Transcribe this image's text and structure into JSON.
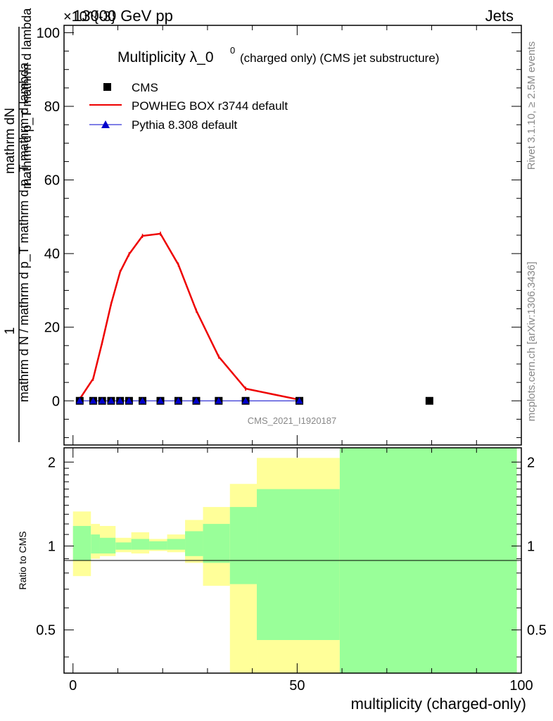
{
  "header": {
    "left": "13000 GeV pp",
    "right": "Jets",
    "exponent": "×10^{-3}"
  },
  "title": {
    "main": "Multiplicity λ_0",
    "superscript": "0",
    "sub": "(charged only) (CMS jet substructure)"
  },
  "side_text": {
    "rivet": "Rivet 3.1.10, ≥ 2.5M events",
    "mcplots": "mcplots.cern.ch [arXiv:1306.3436]"
  },
  "watermark": "CMS_2021_I1920187",
  "ylabel_main": {
    "numerator": "mathrm dN",
    "numerator2": "mathrm d p_T mathrm d lambda",
    "one": "1",
    "denominator": "mathrm d N / mathrm d p_T mathrm d p_T mathrm d lambda"
  },
  "ylabel_ratio": "Ratio to CMS",
  "xlabel": "multiplicity (charged-only)",
  "legend": [
    {
      "label": "CMS",
      "color": "#000000",
      "marker": "square"
    },
    {
      "label": "POWHEG BOX r3744 default",
      "color": "#ee0000",
      "marker": "line"
    },
    {
      "label": "Pythia 8.308 default",
      "color": "#0000cc",
      "marker": "triangle"
    }
  ],
  "chart_data": {
    "type": "line",
    "xlim": [
      -2,
      100
    ],
    "ylim_main": [
      -12,
      102
    ],
    "ylim_ratio": [
      0.35,
      2.25
    ],
    "xticks": [
      0,
      50,
      100
    ],
    "yticks_main": [
      0,
      20,
      40,
      60,
      80,
      100
    ],
    "yticks_ratio": [
      0.5,
      1,
      2
    ],
    "series": [
      {
        "name": "CMS",
        "x": [
          1.5,
          4.5,
          6.5,
          8.5,
          10.5,
          12.5,
          15.5,
          19.5,
          23.5,
          27.5,
          32.5,
          38.5,
          50.5,
          79.5
        ],
        "y": [
          0,
          0,
          0,
          0,
          0,
          0,
          0,
          0,
          0,
          0,
          0,
          0,
          0,
          0
        ]
      },
      {
        "name": "POWHEG BOX r3744 default",
        "x": [
          1.5,
          4.5,
          6.5,
          8.5,
          10.5,
          12.5,
          15.5,
          19.5,
          23.5,
          27.5,
          32.5,
          38.5,
          50.5
        ],
        "y": [
          0.5,
          6.0,
          15.8,
          26.3,
          35.0,
          39.8,
          44.8,
          45.4,
          37.0,
          24.5,
          12.0,
          3.3,
          0.3
        ]
      },
      {
        "name": "Pythia 8.308 default",
        "x": [
          1.5,
          4.5,
          6.5,
          8.5,
          10.5,
          12.5,
          15.5,
          19.5,
          23.5,
          27.5,
          32.5,
          38.5,
          50.5
        ],
        "y": [
          0,
          0,
          0,
          0,
          0,
          0,
          0,
          0,
          0,
          0,
          0,
          0,
          0
        ]
      }
    ],
    "ratio_bands": [
      {
        "x": [
          0,
          4
        ],
        "yellow": [
          0.78,
          1.33
        ],
        "green": [
          0.89,
          1.18
        ]
      },
      {
        "x": [
          4,
          6
        ],
        "yellow": [
          0.9,
          1.2
        ],
        "green": [
          0.94,
          1.1
        ]
      },
      {
        "x": [
          6,
          9.5
        ],
        "yellow": [
          0.92,
          1.18
        ],
        "green": [
          0.94,
          1.07
        ]
      },
      {
        "x": [
          9.5,
          13
        ],
        "yellow": [
          0.95,
          1.07
        ],
        "green": [
          0.97,
          1.03
        ]
      },
      {
        "x": [
          13,
          17
        ],
        "yellow": [
          0.94,
          1.12
        ],
        "green": [
          0.97,
          1.06
        ]
      },
      {
        "x": [
          17,
          21
        ],
        "yellow": [
          0.96,
          1.06
        ],
        "green": [
          0.97,
          1.04
        ]
      },
      {
        "x": [
          21,
          25
        ],
        "yellow": [
          0.95,
          1.1
        ],
        "green": [
          0.97,
          1.06
        ]
      },
      {
        "x": [
          25,
          29
        ],
        "yellow": [
          0.87,
          1.24
        ],
        "green": [
          0.92,
          1.13
        ]
      },
      {
        "x": [
          29,
          35
        ],
        "yellow": [
          0.72,
          1.38
        ],
        "green": [
          0.87,
          1.2
        ]
      },
      {
        "x": [
          35,
          41
        ],
        "yellow": [
          0.35,
          1.67
        ],
        "green": [
          0.73,
          1.38
        ]
      },
      {
        "x": [
          41,
          59.5
        ],
        "yellow": [
          0.35,
          2.07
        ],
        "green": [
          0.46,
          1.6
        ]
      },
      {
        "x": [
          59.5,
          99
        ],
        "yellow": [
          0.35,
          2.25
        ],
        "green": [
          0.35,
          2.25
        ]
      }
    ]
  }
}
